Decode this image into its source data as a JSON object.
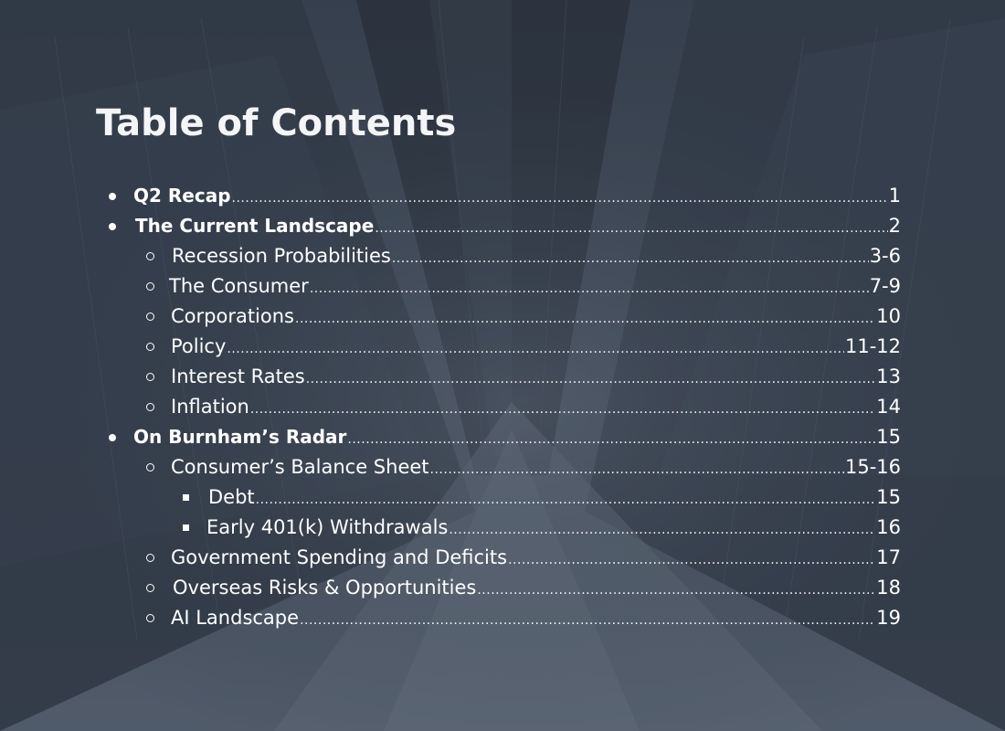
{
  "document": {
    "title": "Table of Contents",
    "entries": [
      {
        "label": "Q2 Recap",
        "page": "1",
        "level": 1,
        "bold": true
      },
      {
        "label": "The Current Landscape",
        "page": "2",
        "level": 1,
        "bold": true
      },
      {
        "label": "Recession Probabilities",
        "page": "3-6",
        "level": 2,
        "bold": false
      },
      {
        "label": "The Consumer",
        "page": "7-9",
        "level": 2,
        "bold": false
      },
      {
        "label": "Corporations",
        "page": "10",
        "level": 2,
        "bold": false
      },
      {
        "label": "Policy",
        "page": "11-12",
        "level": 2,
        "bold": false
      },
      {
        "label": "Interest Rates",
        "page": "13",
        "level": 2,
        "bold": false
      },
      {
        "label": "Inflation",
        "page": "14",
        "level": 2,
        "bold": false
      },
      {
        "label": "On Burnham’s Radar",
        "page": "15",
        "level": 1,
        "bold": true
      },
      {
        "label": "Consumer’s Balance Sheet",
        "page": "15-16",
        "level": 2,
        "bold": false
      },
      {
        "label": "Debt",
        "page": "15",
        "level": 3,
        "bold": false
      },
      {
        "label": "Early 401(k) Withdrawals",
        "page": "16",
        "level": 3,
        "bold": false
      },
      {
        "label": "Government Spending and Deficits",
        "page": "17",
        "level": 2,
        "bold": false
      },
      {
        "label": "Overseas Risks & Opportunities",
        "page": "18",
        "level": 2,
        "bold": false
      },
      {
        "label": "AI Landscape",
        "page": "19",
        "level": 2,
        "bold": false
      }
    ]
  },
  "colors": {
    "background": "#3e4856",
    "text": "#ffffff"
  }
}
